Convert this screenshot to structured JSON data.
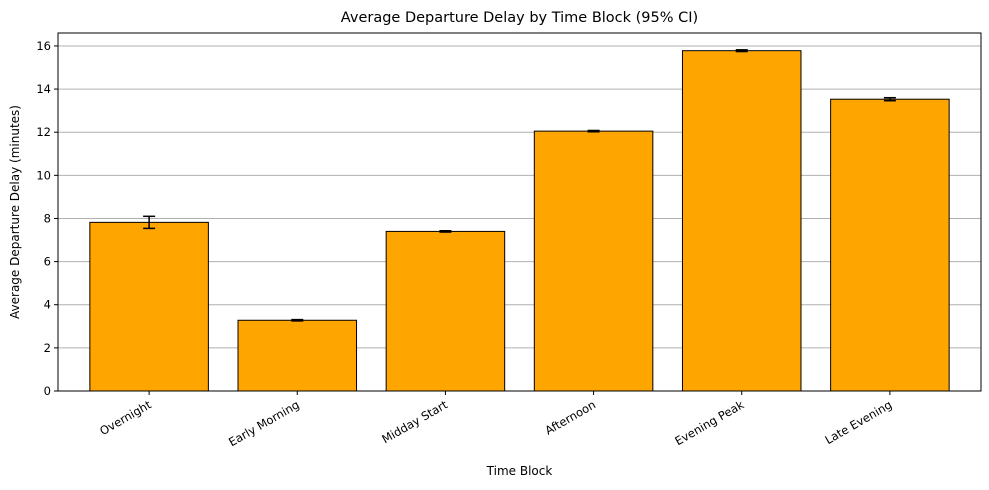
{
  "chart_data": {
    "type": "bar",
    "title": "Average Departure Delay by Time Block (95% CI)",
    "xlabel": "Time Block",
    "ylabel": "Average Departure Delay (minutes)",
    "categories": [
      "Overnight",
      "Early Morning",
      "Midday Start",
      "Afternoon",
      "Evening Peak",
      "Late Evening"
    ],
    "values": [
      7.82,
      3.28,
      7.4,
      12.05,
      15.78,
      13.53
    ],
    "ci": [
      0.28,
      0.03,
      0.03,
      0.03,
      0.04,
      0.07
    ],
    "ylim": [
      0,
      16.6
    ],
    "yticks": [
      0,
      2,
      4,
      6,
      8,
      10,
      12,
      14,
      16
    ],
    "grid": "y",
    "bar_color": "#FFA500",
    "edge_color": "#000000",
    "grid_color": "#b0b0b0"
  }
}
